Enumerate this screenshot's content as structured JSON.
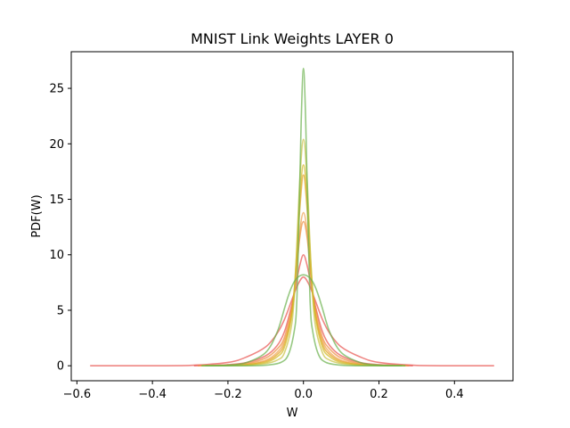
{
  "chart_data": {
    "type": "line",
    "title": "MNIST Link Weights LAYER 0",
    "xlabel": "W",
    "ylabel": "PDF(W)",
    "xlim": [
      -0.615,
      0.555
    ],
    "ylim": [
      -1.35,
      28.3
    ],
    "grid": false,
    "x_ticks": [
      -0.6,
      -0.4,
      -0.2,
      0.0,
      0.2,
      0.4
    ],
    "x_tick_labels": [
      "−0.6",
      "−0.4",
      "−0.2",
      "0.0",
      "0.2",
      "0.4"
    ],
    "y_ticks": [
      0,
      5,
      10,
      15,
      20,
      25
    ],
    "y_tick_labels": [
      "0",
      "5",
      "10",
      "15",
      "20",
      "25"
    ],
    "series": [
      {
        "color": "#e8524f",
        "x": [
          -0.565,
          -0.4,
          -0.3,
          -0.2,
          -0.15,
          -0.1,
          -0.07,
          -0.05,
          -0.03,
          -0.015,
          0.0,
          0.015,
          0.03,
          0.05,
          0.07,
          0.1,
          0.15,
          0.2,
          0.3,
          0.4,
          0.505
        ],
        "values": [
          0.0,
          0.0,
          0.03,
          0.3,
          0.8,
          1.7,
          2.9,
          4.2,
          6.0,
          7.3,
          8.0,
          7.3,
          6.0,
          4.2,
          2.9,
          1.7,
          0.8,
          0.3,
          0.03,
          0.0,
          0.0
        ]
      },
      {
        "color": "#e8524f",
        "x": [
          -0.29,
          -0.2,
          -0.15,
          -0.1,
          -0.07,
          -0.05,
          -0.03,
          -0.02,
          -0.01,
          0.0,
          0.01,
          0.02,
          0.03,
          0.05,
          0.07,
          0.1,
          0.15,
          0.2,
          0.29
        ],
        "values": [
          0.0,
          0.1,
          0.3,
          0.9,
          1.8,
          3.1,
          5.6,
          7.3,
          9.0,
          10.0,
          9.0,
          7.3,
          5.6,
          3.1,
          1.8,
          0.9,
          0.3,
          0.1,
          0.0
        ]
      },
      {
        "color": "#ec8a3a",
        "x": [
          -0.28,
          -0.2,
          -0.15,
          -0.1,
          -0.07,
          -0.05,
          -0.03,
          -0.02,
          -0.01,
          0.0,
          0.01,
          0.02,
          0.03,
          0.05,
          0.07,
          0.1,
          0.15,
          0.2,
          0.28
        ],
        "values": [
          0.0,
          0.05,
          0.2,
          0.7,
          1.5,
          2.6,
          5.5,
          8.0,
          11.5,
          13.0,
          11.5,
          8.0,
          5.5,
          2.6,
          1.5,
          0.7,
          0.2,
          0.05,
          0.0
        ]
      },
      {
        "color": "#f0a04a",
        "x": [
          -0.27,
          -0.2,
          -0.15,
          -0.1,
          -0.07,
          -0.05,
          -0.03,
          -0.02,
          -0.01,
          0.0,
          0.01,
          0.02,
          0.03,
          0.05,
          0.07,
          0.1,
          0.15,
          0.2,
          0.27
        ],
        "values": [
          0.0,
          0.05,
          0.15,
          0.5,
          1.2,
          2.3,
          5.0,
          8.0,
          12.0,
          13.8,
          12.0,
          8.0,
          5.0,
          2.3,
          1.2,
          0.5,
          0.15,
          0.05,
          0.0
        ]
      },
      {
        "color": "#e0a020",
        "x": [
          -0.27,
          -0.2,
          -0.15,
          -0.1,
          -0.07,
          -0.05,
          -0.03,
          -0.02,
          -0.01,
          0.0,
          0.01,
          0.02,
          0.03,
          0.05,
          0.07,
          0.1,
          0.15,
          0.2,
          0.27
        ],
        "values": [
          0.0,
          0.03,
          0.1,
          0.4,
          1.0,
          2.0,
          5.0,
          8.5,
          14.0,
          17.2,
          14.0,
          8.5,
          5.0,
          2.0,
          1.0,
          0.4,
          0.1,
          0.03,
          0.0
        ]
      },
      {
        "color": "#d4b820",
        "x": [
          -0.27,
          -0.2,
          -0.15,
          -0.1,
          -0.07,
          -0.05,
          -0.03,
          -0.02,
          -0.01,
          0.0,
          0.01,
          0.02,
          0.03,
          0.05,
          0.07,
          0.1,
          0.15,
          0.2,
          0.27
        ],
        "values": [
          0.0,
          0.02,
          0.08,
          0.3,
          0.8,
          1.7,
          4.8,
          9.0,
          15.0,
          18.1,
          15.0,
          9.0,
          4.8,
          1.7,
          0.8,
          0.3,
          0.08,
          0.02,
          0.0
        ]
      },
      {
        "color": "#c8c040",
        "x": [
          -0.27,
          -0.2,
          -0.15,
          -0.1,
          -0.07,
          -0.05,
          -0.03,
          -0.02,
          -0.01,
          0.0,
          0.01,
          0.02,
          0.03,
          0.05,
          0.07,
          0.1,
          0.15,
          0.2,
          0.27
        ],
        "values": [
          0.0,
          0.02,
          0.05,
          0.2,
          0.5,
          1.2,
          4.0,
          9.0,
          16.5,
          20.4,
          16.5,
          9.0,
          4.0,
          1.2,
          0.5,
          0.2,
          0.05,
          0.02,
          0.0
        ]
      },
      {
        "color": "#6ab04c",
        "x": [
          -0.27,
          -0.2,
          -0.15,
          -0.1,
          -0.07,
          -0.05,
          -0.04,
          -0.03,
          -0.02,
          -0.01,
          0.0,
          0.01,
          0.02,
          0.03,
          0.04,
          0.05,
          0.07,
          0.1,
          0.15,
          0.2,
          0.27
        ],
        "values": [
          0.0,
          0.05,
          0.3,
          1.2,
          3.0,
          5.2,
          6.3,
          7.2,
          7.8,
          8.1,
          8.2,
          8.1,
          7.8,
          7.2,
          6.3,
          5.2,
          3.0,
          1.2,
          0.3,
          0.05,
          0.0
        ]
      },
      {
        "color": "#6ab04c",
        "x": [
          -0.26,
          -0.15,
          -0.1,
          -0.06,
          -0.04,
          -0.025,
          -0.018,
          -0.012,
          -0.006,
          0.0,
          0.006,
          0.012,
          0.018,
          0.025,
          0.04,
          0.06,
          0.1,
          0.15,
          0.26
        ],
        "values": [
          0.0,
          0.0,
          0.05,
          0.3,
          1.0,
          3.0,
          5.5,
          13.0,
          22.0,
          26.8,
          22.0,
          13.0,
          5.5,
          3.0,
          1.0,
          0.3,
          0.05,
          0.0,
          0.0
        ]
      }
    ]
  }
}
